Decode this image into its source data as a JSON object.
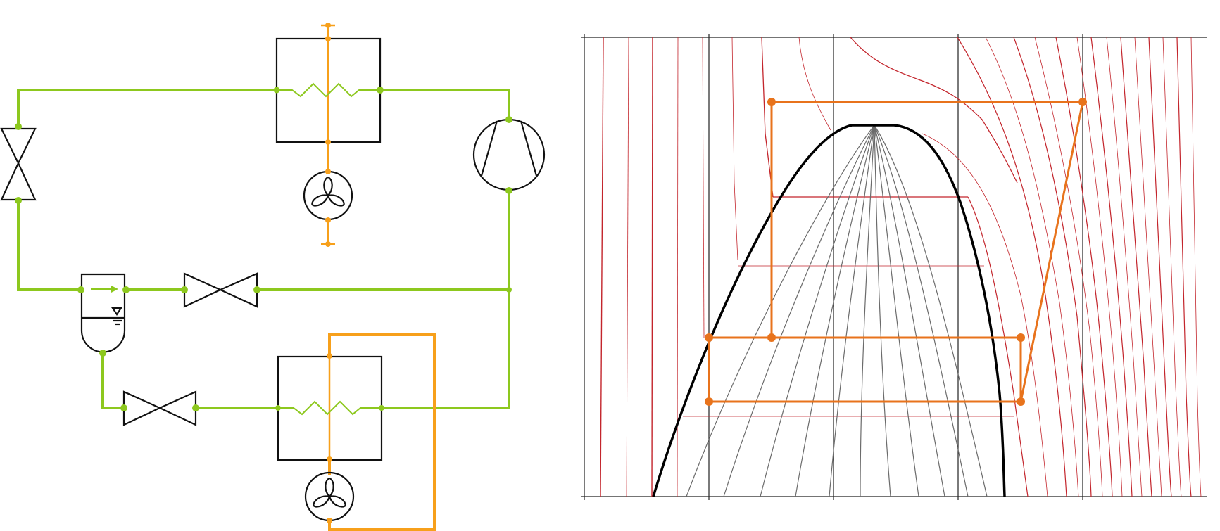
{
  "diagram": {
    "colors": {
      "refrigerant_pipe": "#8dc81e",
      "air_or_water_pipe": "#f7a01b",
      "component_outline": "#111111",
      "isoline_dark": "#c3252c",
      "quality_lines": "#6b6b6b",
      "saturation_dome": "#000000",
      "cycle_path": "#e8731c"
    },
    "components": [
      {
        "type": "condenser-heat-exchanger",
        "icon": "heat-exchanger-icon"
      },
      {
        "type": "compressor",
        "icon": "compressor-icon"
      },
      {
        "type": "expansion-valve",
        "icon": "expansion-valve-icon"
      },
      {
        "type": "receiver-separator",
        "icon": "receiver-icon"
      },
      {
        "type": "throttle-valve-upper",
        "icon": "valve-icon"
      },
      {
        "type": "throttle-valve-lower",
        "icon": "valve-icon"
      },
      {
        "type": "evaporator-heat-exchanger",
        "icon": "heat-exchanger-icon"
      },
      {
        "type": "fan-upper",
        "icon": "fan-icon"
      },
      {
        "type": "fan-lower",
        "icon": "fan-icon"
      }
    ]
  },
  "chart_data": {
    "type": "line",
    "title": "",
    "xlabel": "",
    "ylabel": "",
    "grid": true,
    "legend": "none",
    "x_ticks": 5,
    "axes_labels_visible": false,
    "series": [
      {
        "role": "saturation-dome"
      },
      {
        "role": "refrigeration-cycle"
      }
    ]
  }
}
